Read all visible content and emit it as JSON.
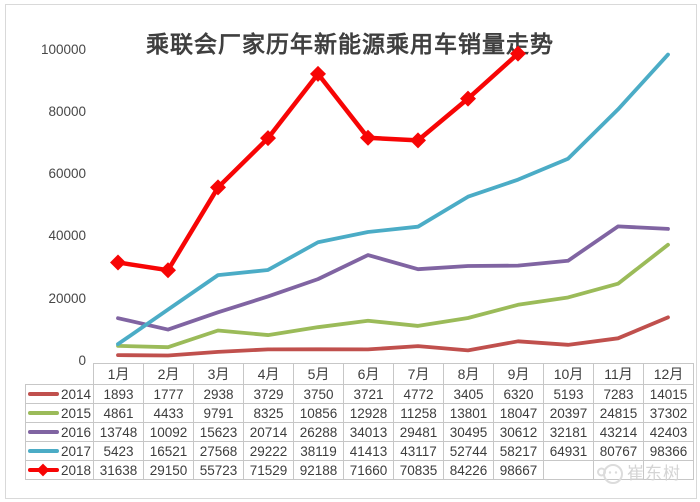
{
  "chart_data": {
    "type": "line",
    "title": "乘联会厂家历年新能源乘用车销量走势",
    "categories": [
      "1月",
      "2月",
      "3月",
      "4月",
      "5月",
      "6月",
      "7月",
      "8月",
      "9月",
      "10月",
      "11月",
      "12月"
    ],
    "series": [
      {
        "name": "2014",
        "color": "#C0504D",
        "marker": "none",
        "values": [
          1893,
          1777,
          2938,
          3729,
          3750,
          3721,
          4772,
          3405,
          6320,
          5193,
          7283,
          14015
        ]
      },
      {
        "name": "2015",
        "color": "#9BBB59",
        "marker": "none",
        "values": [
          4861,
          4433,
          9791,
          8325,
          10856,
          12928,
          11258,
          13801,
          18047,
          20397,
          24815,
          37302
        ]
      },
      {
        "name": "2016",
        "color": "#8064A2",
        "marker": "none",
        "values": [
          13748,
          10092,
          15623,
          20714,
          26288,
          34013,
          29481,
          30495,
          30612,
          32181,
          43214,
          42403
        ]
      },
      {
        "name": "2017",
        "color": "#4BACC6",
        "marker": "none",
        "values": [
          5423,
          16521,
          27568,
          29222,
          38119,
          41413,
          43117,
          52744,
          58217,
          64931,
          80767,
          98366
        ]
      },
      {
        "name": "2018",
        "color": "#F70505",
        "marker": "diamond",
        "values": [
          31638,
          29150,
          55723,
          71529,
          92188,
          71660,
          70835,
          84226,
          98667,
          null,
          null,
          null
        ]
      }
    ],
    "y_axis": {
      "min": 0,
      "max": 100000,
      "ticks": [
        0,
        20000,
        40000,
        60000,
        80000,
        100000
      ]
    },
    "grid": false,
    "legend_position": "table-first-column"
  },
  "watermark": {
    "text": "崔东树"
  }
}
